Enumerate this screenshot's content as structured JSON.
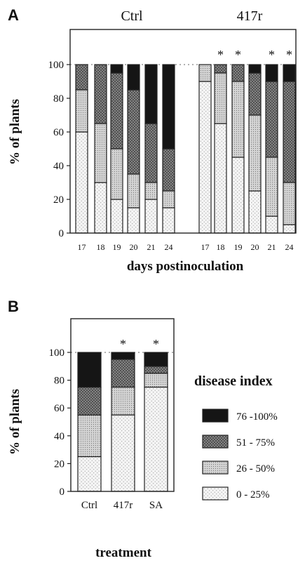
{
  "colors": {
    "c0": "#f4f4f4",
    "c1": "#d4d4d4",
    "c2": "#8d8d8d",
    "c3": "#151515"
  },
  "chart_data": [
    {
      "panel": "A",
      "type": "bar",
      "stacked": true,
      "group_titles": [
        "Ctrl",
        "417r"
      ],
      "x_labels": [
        "17",
        "18",
        "19",
        "20",
        "21",
        "24",
        "17",
        "18",
        "19",
        "20",
        "21",
        "24"
      ],
      "groups": [
        0,
        0,
        0,
        0,
        0,
        0,
        1,
        1,
        1,
        1,
        1,
        1
      ],
      "series": [
        {
          "name": "0 - 25%",
          "values": [
            60,
            30,
            20,
            15,
            20,
            15,
            90,
            65,
            45,
            25,
            10,
            5
          ]
        },
        {
          "name": "26 - 50%",
          "values": [
            25,
            35,
            30,
            20,
            10,
            10,
            10,
            30,
            45,
            45,
            35,
            25
          ]
        },
        {
          "name": "51 - 75%",
          "values": [
            15,
            35,
            45,
            50,
            35,
            25,
            0,
            5,
            10,
            25,
            45,
            60
          ]
        },
        {
          "name": "76 -100%",
          "values": [
            0,
            0,
            5,
            15,
            35,
            50,
            0,
            0,
            0,
            5,
            10,
            10
          ]
        }
      ],
      "significant": [
        false,
        false,
        false,
        false,
        false,
        false,
        false,
        true,
        true,
        false,
        true,
        true
      ],
      "significance_marker": "*",
      "ylabel": "% of plants",
      "xlabel": "days postinoculation",
      "ylim": [
        0,
        100
      ],
      "yticks": [
        "0",
        "20",
        "40",
        "60",
        "80",
        "100"
      ],
      "reference_line": 100
    },
    {
      "panel": "B",
      "type": "bar",
      "stacked": true,
      "x_labels": [
        "Ctrl",
        "417r",
        "SA"
      ],
      "series": [
        {
          "name": "0 - 25%",
          "values": [
            25,
            55,
            75
          ]
        },
        {
          "name": "26 - 50%",
          "values": [
            30,
            20,
            10
          ]
        },
        {
          "name": "51 - 75%",
          "values": [
            20,
            20,
            5
          ]
        },
        {
          "name": "76 -100%",
          "values": [
            25,
            5,
            10
          ]
        }
      ],
      "significant": [
        false,
        true,
        true
      ],
      "significance_marker": "*",
      "ylabel": "% of plants",
      "xlabel": "treatment",
      "ylim": [
        0,
        100
      ],
      "yticks": [
        "0",
        "20",
        "40",
        "60",
        "80",
        "100"
      ],
      "reference_line": 100,
      "legend": {
        "title": "disease index",
        "entries": [
          "76 -100%",
          "51 - 75%",
          "26 - 50%",
          "0 - 25%"
        ],
        "placement": "right"
      }
    }
  ]
}
